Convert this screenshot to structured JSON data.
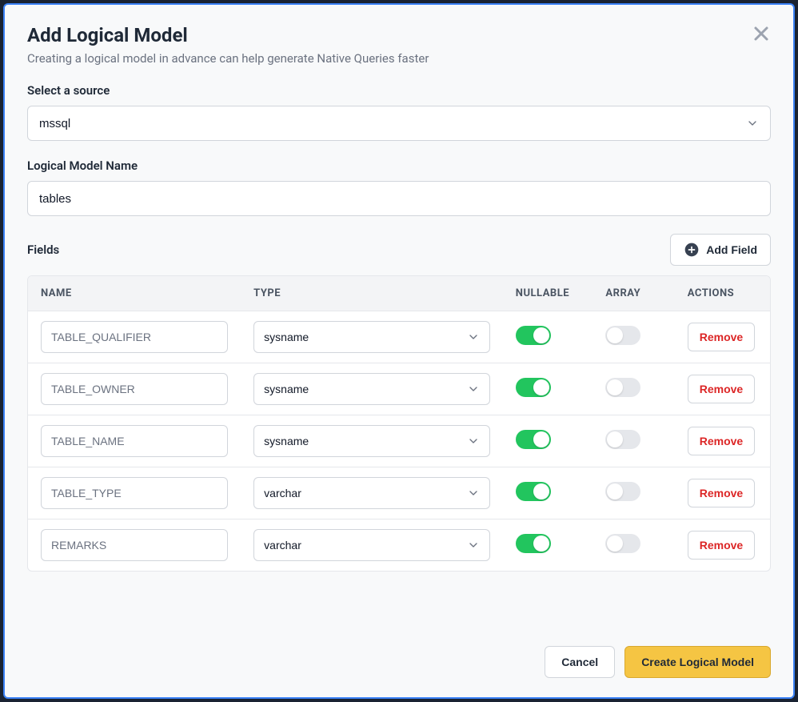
{
  "modal": {
    "title": "Add Logical Model",
    "subtitle": "Creating a logical model in advance can help generate Native Queries faster"
  },
  "source": {
    "label": "Select a source",
    "value": "mssql"
  },
  "model_name": {
    "label": "Logical Model Name",
    "value": "tables"
  },
  "fields_section": {
    "label": "Fields",
    "add_button": "Add Field",
    "columns": {
      "name": "NAME",
      "type": "TYPE",
      "nullable": "NULLABLE",
      "array": "ARRAY",
      "actions": "ACTIONS"
    },
    "remove_label": "Remove",
    "rows": [
      {
        "name": "TABLE_QUALIFIER",
        "type": "sysname",
        "nullable": true,
        "array": false
      },
      {
        "name": "TABLE_OWNER",
        "type": "sysname",
        "nullable": true,
        "array": false
      },
      {
        "name": "TABLE_NAME",
        "type": "sysname",
        "nullable": true,
        "array": false
      },
      {
        "name": "TABLE_TYPE",
        "type": "varchar",
        "nullable": true,
        "array": false
      },
      {
        "name": "REMARKS",
        "type": "varchar",
        "nullable": true,
        "array": false
      }
    ]
  },
  "footer": {
    "cancel": "Cancel",
    "submit": "Create Logical Model"
  },
  "colors": {
    "toggle_on": "#22c55e",
    "toggle_off": "#e5e7eb",
    "primary_button_bg": "#f5c543",
    "primary_button_border": "#d9a82e",
    "danger_text": "#dc2626",
    "modal_border": "#3b82f6",
    "page_bg": "#1a2332",
    "modal_bg": "#f8f9fa"
  }
}
